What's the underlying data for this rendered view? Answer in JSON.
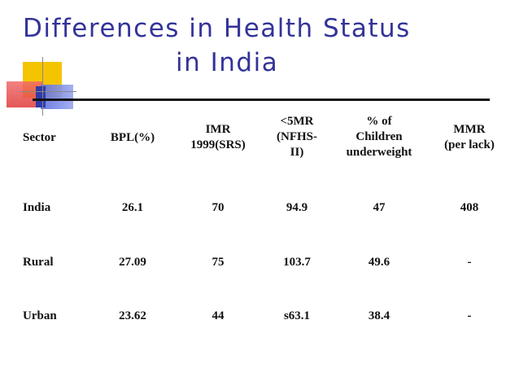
{
  "slide": {
    "title_line1": "Differences in Health Status",
    "title_line2": "in India"
  },
  "table": {
    "headers": {
      "sector": "Sector",
      "bpl": "BPL(%)",
      "imr": "IMR\n1999(SRS)",
      "u5mr": "<5MR\n(NFHS-\nII)",
      "underweight": "% of\nChildren\nunderweight",
      "mmr": "MMR\n(per lack)"
    },
    "rows": [
      {
        "sector": "India",
        "bpl": "26.1",
        "imr": "70",
        "u5mr": "94.9",
        "underweight": "47",
        "mmr": "408"
      },
      {
        "sector": "Rural",
        "bpl": "27.09",
        "imr": "75",
        "u5mr": "103.7",
        "underweight": "49.6",
        "mmr": "-"
      },
      {
        "sector": "Urban",
        "bpl": "23.62",
        "imr": "44",
        "u5mr": "s63.1",
        "underweight": "38.4",
        "mmr": "-"
      }
    ]
  },
  "colors": {
    "title": "#333399",
    "text": "#111111",
    "accent_yellow": "#f5c400",
    "accent_red": "#e03a3a",
    "accent_blue": "#5b6de0"
  }
}
